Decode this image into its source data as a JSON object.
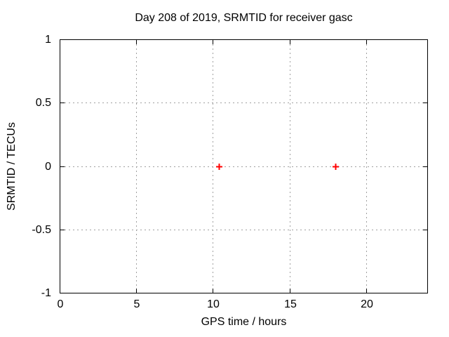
{
  "chart_data": {
    "type": "scatter",
    "title": "Day 208 of 2019, SRMTID for receiver gasc",
    "xlabel": "GPS time / hours",
    "ylabel": "SRMTID / TECUs",
    "xlim": [
      0,
      24
    ],
    "ylim": [
      -1,
      1
    ],
    "x_ticks": [
      0,
      5,
      10,
      15,
      20
    ],
    "y_ticks": [
      -1,
      -0.5,
      0,
      0.5,
      1
    ],
    "grid": true,
    "grid_style": "dotted",
    "legend": false,
    "series": [
      {
        "name": "SRMTID",
        "marker": "plus",
        "color": "#ff0000",
        "points": [
          {
            "x": 10.4,
            "y": 0
          },
          {
            "x": 18.0,
            "y": 0
          }
        ]
      }
    ],
    "colors": {
      "background": "#ffffff",
      "border": "#000000",
      "grid": "#a0a0a0",
      "text": "#000000"
    }
  }
}
